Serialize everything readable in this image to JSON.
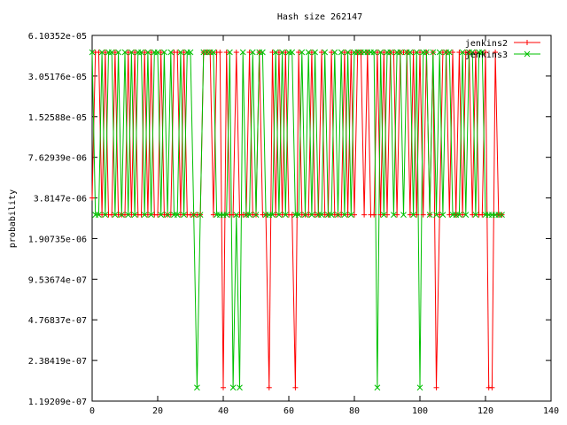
{
  "chart_data": {
    "type": "line",
    "title": "Hash size 262147",
    "xlabel": "",
    "ylabel": "probability",
    "xlim": [
      0,
      140
    ],
    "ylim": [
      1.19209e-07,
      6.10352e-05
    ],
    "yscale": "log2",
    "x_ticks": [
      "0",
      "20",
      "40",
      "60",
      "80",
      "100",
      "120",
      "140"
    ],
    "y_ticks": [
      "6.10352e-05",
      "3.05176e-05",
      "1.52588e-05",
      "7.62939e-06",
      "3.8147e-06",
      "1.90735e-06",
      "9.53674e-07",
      "4.76837e-07",
      "2.38419e-07",
      "1.19209e-07"
    ],
    "legend_position": "top-right",
    "grid": false,
    "series": [
      {
        "name": "jenkins2",
        "color": "#ff0000",
        "marker": "plus",
        "x": [
          0,
          1,
          2,
          3,
          4,
          5,
          6,
          7,
          8,
          9,
          10,
          11,
          12,
          13,
          14,
          15,
          16,
          17,
          18,
          19,
          20,
          21,
          22,
          23,
          24,
          25,
          26,
          27,
          28,
          29,
          30,
          31,
          32,
          33,
          34,
          35,
          36,
          37,
          38,
          39,
          40,
          41,
          42,
          43,
          44,
          45,
          46,
          47,
          48,
          49,
          50,
          51,
          52,
          53,
          54,
          55,
          56,
          57,
          58,
          59,
          60,
          61,
          62,
          63,
          64,
          65,
          66,
          67,
          68,
          69,
          70,
          71,
          72,
          73,
          74,
          75,
          76,
          77,
          78,
          79,
          80,
          81,
          82,
          83,
          84,
          85,
          86,
          87,
          88,
          89,
          90,
          91,
          92,
          93,
          94,
          95,
          96,
          97,
          98,
          99,
          100,
          101,
          102,
          103,
          104,
          105,
          106,
          107,
          108,
          109,
          110,
          111,
          112,
          113,
          114,
          115,
          116,
          117,
          118,
          119,
          120,
          121,
          122,
          123,
          124,
          125
        ],
        "y": [
          3.815e-06,
          4.578e-05,
          4.578e-05,
          2.861e-06,
          4.578e-05,
          2.861e-06,
          2.861e-06,
          4.578e-05,
          2.861e-06,
          2.861e-06,
          2.861e-06,
          4.578e-05,
          2.861e-06,
          4.578e-05,
          2.861e-06,
          2.861e-06,
          4.578e-05,
          2.861e-06,
          4.578e-05,
          2.861e-06,
          2.861e-06,
          4.578e-05,
          2.861e-06,
          2.861e-06,
          2.861e-06,
          4.578e-05,
          4.578e-05,
          2.861e-06,
          4.578e-05,
          2.861e-06,
          2.861e-06,
          2.861e-06,
          2.861e-06,
          2.861e-06,
          4.578e-05,
          4.578e-05,
          4.578e-05,
          2.861e-06,
          4.578e-05,
          4.578e-05,
          1.5e-07,
          4.578e-05,
          2.861e-06,
          2.861e-06,
          4.578e-05,
          2.861e-06,
          2.861e-06,
          2.861e-06,
          4.578e-05,
          2.861e-06,
          2.861e-06,
          4.578e-05,
          2.861e-06,
          2.861e-06,
          1.5e-07,
          4.578e-05,
          2.861e-06,
          4.578e-05,
          2.861e-06,
          4.578e-05,
          2.861e-06,
          2.861e-06,
          1.5e-07,
          4.578e-05,
          2.861e-06,
          2.861e-06,
          2.861e-06,
          4.578e-05,
          2.861e-06,
          2.861e-06,
          4.578e-05,
          2.861e-06,
          2.861e-06,
          4.578e-05,
          2.861e-06,
          2.861e-06,
          2.861e-06,
          4.578e-05,
          2.861e-06,
          4.578e-05,
          2.861e-06,
          4.578e-05,
          4.578e-05,
          2.861e-06,
          4.578e-05,
          2.861e-06,
          2.861e-06,
          4.578e-05,
          2.861e-06,
          4.578e-05,
          2.861e-06,
          4.578e-05,
          4.578e-05,
          2.861e-06,
          4.578e-05,
          4.578e-05,
          4.578e-05,
          2.861e-06,
          4.578e-05,
          2.861e-06,
          4.578e-05,
          2.861e-06,
          4.578e-05,
          2.861e-06,
          4.578e-05,
          1.5e-07,
          2.861e-06,
          4.578e-05,
          4.578e-05,
          2.861e-06,
          4.578e-05,
          2.861e-06,
          4.578e-05,
          2.861e-06,
          4.578e-05,
          4.578e-05,
          2.861e-06,
          4.578e-05,
          2.861e-06,
          2.861e-06,
          4.578e-05,
          1.5e-07,
          1.5e-07,
          4.578e-05,
          2.861e-06,
          2.861e-06
        ]
      },
      {
        "name": "jenkins3",
        "color": "#00c000",
        "marker": "cross",
        "x": [
          0,
          1,
          2,
          3,
          4,
          5,
          6,
          7,
          8,
          9,
          10,
          11,
          12,
          13,
          14,
          15,
          16,
          17,
          18,
          19,
          20,
          21,
          22,
          23,
          24,
          25,
          26,
          27,
          28,
          29,
          30,
          31,
          32,
          33,
          34,
          35,
          36,
          37,
          38,
          39,
          40,
          41,
          42,
          43,
          44,
          45,
          46,
          47,
          48,
          49,
          50,
          51,
          52,
          53,
          54,
          55,
          56,
          57,
          58,
          59,
          60,
          61,
          62,
          63,
          64,
          65,
          66,
          67,
          68,
          69,
          70,
          71,
          72,
          73,
          74,
          75,
          76,
          77,
          78,
          79,
          80,
          81,
          82,
          83,
          84,
          85,
          86,
          87,
          88,
          89,
          90,
          91,
          92,
          93,
          94,
          95,
          96,
          97,
          98,
          99,
          100,
          101,
          102,
          103,
          104,
          105,
          106,
          107,
          108,
          109,
          110,
          111,
          112,
          113,
          114,
          115,
          116,
          117,
          118,
          119,
          120,
          121,
          122,
          123,
          124,
          125
        ],
        "y": [
          4.578e-05,
          2.861e-06,
          2.861e-06,
          4.578e-05,
          2.861e-06,
          4.578e-05,
          4.578e-05,
          2.861e-06,
          4.578e-05,
          2.861e-06,
          4.578e-05,
          2.861e-06,
          4.578e-05,
          2.861e-06,
          4.578e-05,
          4.578e-05,
          2.861e-06,
          4.578e-05,
          2.861e-06,
          4.578e-05,
          4.578e-05,
          2.861e-06,
          4.578e-05,
          2.861e-06,
          4.578e-05,
          2.861e-06,
          2.861e-06,
          4.578e-05,
          2.861e-06,
          4.578e-05,
          4.578e-05,
          2.861e-06,
          1.5e-07,
          2.861e-06,
          4.578e-05,
          4.578e-05,
          4.578e-05,
          4.578e-05,
          2.861e-06,
          2.861e-06,
          2.861e-06,
          2.861e-06,
          4.578e-05,
          1.5e-07,
          2.861e-06,
          1.5e-07,
          4.578e-05,
          2.861e-06,
          2.861e-06,
          4.578e-05,
          2.861e-06,
          4.578e-05,
          4.578e-05,
          2.861e-06,
          2.861e-06,
          2.861e-06,
          4.578e-05,
          2.861e-06,
          4.578e-05,
          2.861e-06,
          4.578e-05,
          4.578e-05,
          2.861e-06,
          2.861e-06,
          4.578e-05,
          2.861e-06,
          4.578e-05,
          2.861e-06,
          4.578e-05,
          2.861e-06,
          2.861e-06,
          4.578e-05,
          2.861e-06,
          2.861e-06,
          4.578e-05,
          2.861e-06,
          4.578e-05,
          2.861e-06,
          4.578e-05,
          2.861e-06,
          4.578e-05,
          4.578e-05,
          4.578e-05,
          4.578e-05,
          4.578e-05,
          4.578e-05,
          4.578e-05,
          1.5e-07,
          4.578e-05,
          2.861e-06,
          4.578e-05,
          4.578e-05,
          2.861e-06,
          4.578e-05,
          4.578e-05,
          2.861e-06,
          4.578e-05,
          4.578e-05,
          2.861e-06,
          4.578e-05,
          1.5e-07,
          4.578e-05,
          4.578e-05,
          2.861e-06,
          4.578e-05,
          2.861e-06,
          4.578e-05,
          2.861e-06,
          4.578e-05,
          4.578e-05,
          2.861e-06,
          2.861e-06,
          2.861e-06,
          4.578e-05,
          2.861e-06,
          4.578e-05,
          4.578e-05,
          2.861e-06,
          4.578e-05,
          4.578e-05,
          2.861e-06,
          2.861e-06,
          2.861e-06,
          2.861e-06,
          2.861e-06,
          2.861e-06
        ]
      }
    ]
  }
}
